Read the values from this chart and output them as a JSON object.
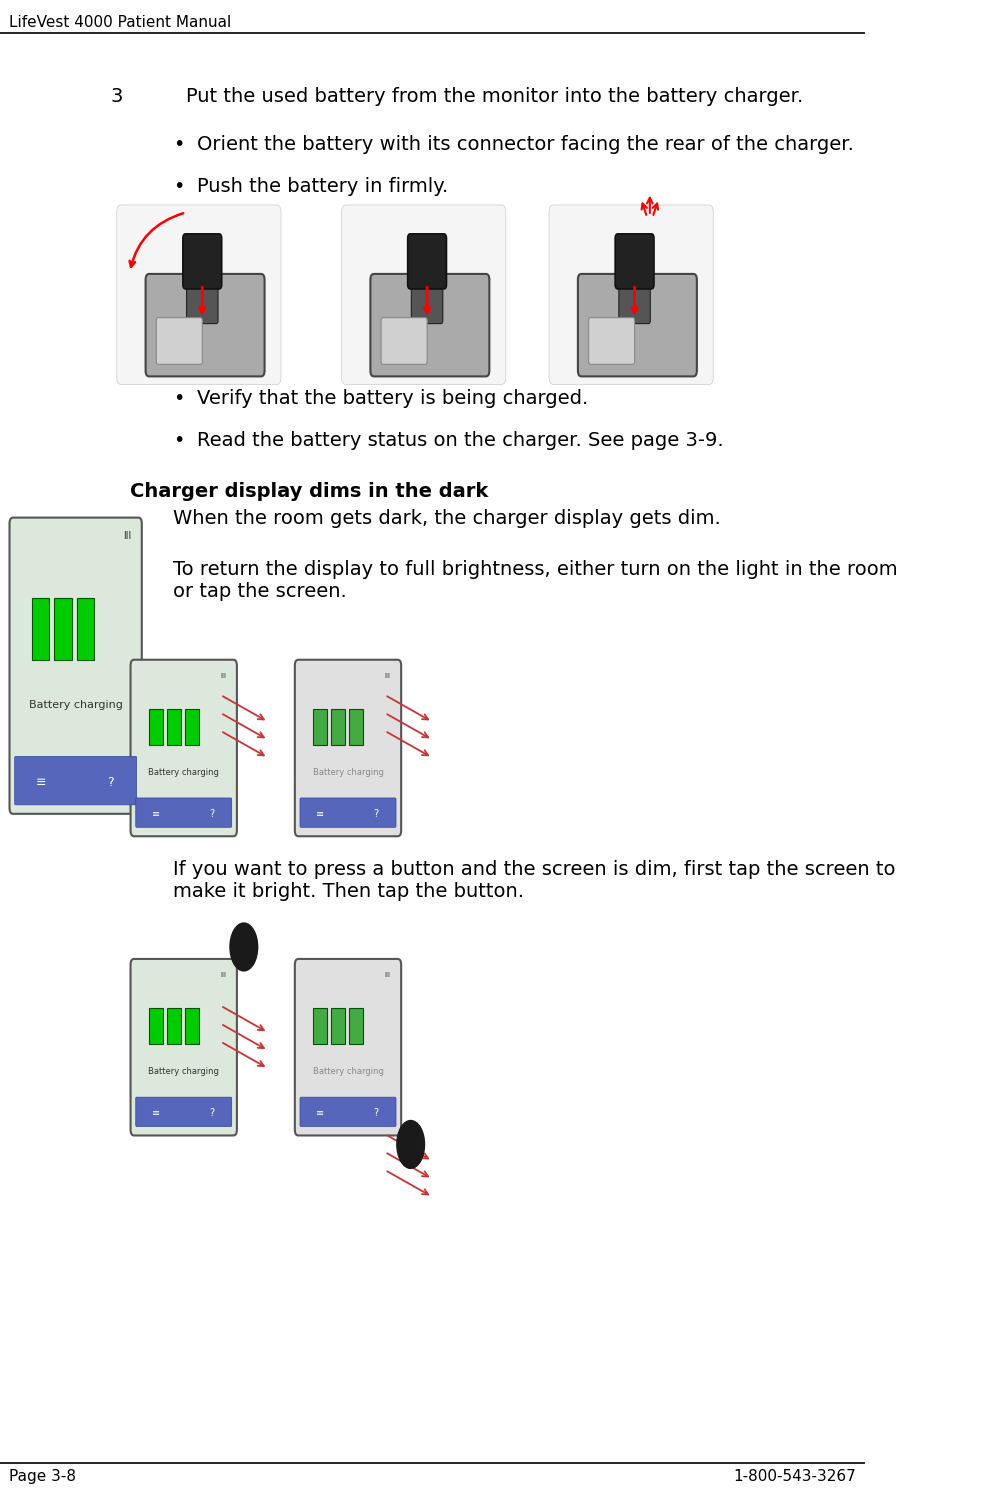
{
  "header_text": "LifeVest 4000 Patient Manual",
  "footer_left": "Page 3-8",
  "footer_right": "1-800-543-3267",
  "bg_color": "#ffffff",
  "header_line_color": "#000000",
  "footer_line_color": "#000000",
  "header_font_size": 11,
  "footer_font_size": 11,
  "step3_label": "3",
  "step3_text": "Put the used battery from the monitor into the battery charger.",
  "bullet1": "Orient the battery with its connector facing the rear of the charger.",
  "bullet2": "Push the battery in firmly.",
  "bullet3": "Verify that the battery is being charged.",
  "bullet4": "Read the battery status on the charger. See page 3-9.",
  "section_title": "Charger display dims in the dark",
  "para1": "When the room gets dark, the charger display gets dim.",
  "para2": "To return the display to full brightness, either turn on the light in the room\nor tap the screen.",
  "para3": "If you want to press a button and the screen is dim, first tap the screen to\nmake it bright. Then tap the button.",
  "text_color": "#000000",
  "bullet_color": "#000000",
  "section_title_color": "#000000",
  "body_font_size": 13,
  "section_title_font_size": 13,
  "step_font_size": 13,
  "image_placeholder_color": "#cccccc",
  "image_border_color": "#999999"
}
